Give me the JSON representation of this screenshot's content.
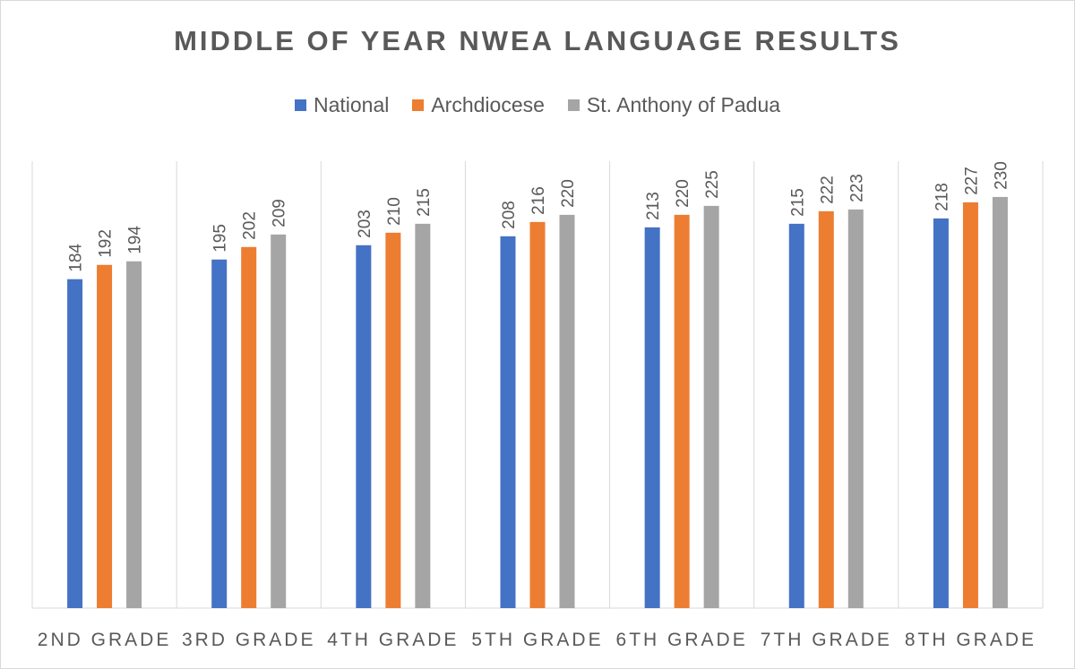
{
  "chart_data": {
    "type": "bar",
    "title": "MIDDLE OF YEAR NWEA LANGUAGE RESULTS",
    "categories": [
      "2ND GRADE",
      "3RD GRADE",
      "4TH GRADE",
      "5TH GRADE",
      "6TH GRADE",
      "7TH GRADE",
      "8TH GRADE"
    ],
    "series": [
      {
        "name": "National",
        "color": "#4472c4",
        "values": [
          184,
          195,
          203,
          208,
          213,
          215,
          218
        ]
      },
      {
        "name": "Archdiocese",
        "color": "#ed7d31",
        "values": [
          192,
          202,
          210,
          216,
          220,
          222,
          227
        ]
      },
      {
        "name": "St. Anthony of Padua",
        "color": "#a5a5a5",
        "values": [
          194,
          209,
          215,
          220,
          225,
          223,
          230
        ]
      }
    ],
    "ylim": [
      0,
      250
    ],
    "grid": false,
    "legend_position": "top"
  }
}
